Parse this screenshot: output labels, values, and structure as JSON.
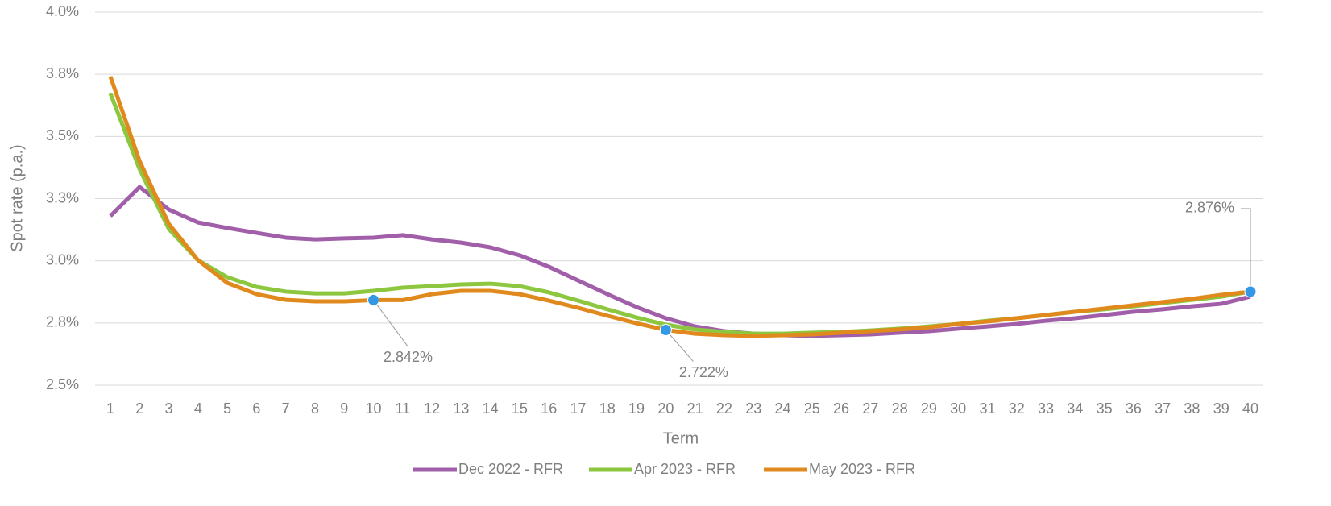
{
  "chart_data": {
    "type": "line",
    "x_label": "Term",
    "y_label": "Spot rate (p.a.)",
    "x": [
      1,
      2,
      3,
      4,
      5,
      6,
      7,
      8,
      9,
      10,
      11,
      12,
      13,
      14,
      15,
      16,
      17,
      18,
      19,
      20,
      21,
      22,
      23,
      24,
      25,
      26,
      27,
      28,
      29,
      30,
      31,
      32,
      33,
      34,
      35,
      36,
      37,
      38,
      39,
      40
    ],
    "xlim": [
      1,
      40
    ],
    "xticks": [
      1,
      2,
      3,
      4,
      5,
      6,
      7,
      8,
      9,
      10,
      11,
      12,
      13,
      14,
      15,
      16,
      17,
      18,
      19,
      20,
      21,
      22,
      23,
      24,
      25,
      26,
      27,
      28,
      29,
      30,
      31,
      32,
      33,
      34,
      35,
      36,
      37,
      38,
      39,
      40
    ],
    "ylim": [
      2.5,
      4.0
    ],
    "yticks": [
      {
        "value": 2.5,
        "label": "2.5%"
      },
      {
        "value": 2.75,
        "label": "2.8%"
      },
      {
        "value": 3.0,
        "label": "3.0%"
      },
      {
        "value": 3.25,
        "label": "3.3%"
      },
      {
        "value": 3.5,
        "label": "3.5%"
      },
      {
        "value": 3.75,
        "label": "3.8%"
      },
      {
        "value": 4.0,
        "label": "4.0%"
      }
    ],
    "grid": true,
    "legend": "bottom",
    "series": [
      {
        "name": "Dec 2022 - RFR",
        "color": "#a05fa8",
        "values": [
          3.18,
          3.297,
          3.206,
          3.154,
          3.132,
          3.112,
          3.093,
          3.086,
          3.09,
          3.093,
          3.103,
          3.086,
          3.073,
          3.054,
          3.022,
          2.976,
          2.921,
          2.866,
          2.814,
          2.769,
          2.736,
          2.717,
          2.707,
          2.701,
          2.698,
          2.701,
          2.704,
          2.711,
          2.717,
          2.727,
          2.736,
          2.746,
          2.759,
          2.769,
          2.782,
          2.795,
          2.805,
          2.817,
          2.827,
          2.856
        ]
      },
      {
        "name": "Apr 2023 - RFR",
        "color": "#8dc63f",
        "values": [
          3.673,
          3.368,
          3.128,
          3.002,
          2.934,
          2.895,
          2.876,
          2.869,
          2.869,
          2.879,
          2.892,
          2.898,
          2.905,
          2.908,
          2.898,
          2.873,
          2.84,
          2.805,
          2.772,
          2.743,
          2.724,
          2.714,
          2.707,
          2.707,
          2.711,
          2.714,
          2.72,
          2.727,
          2.736,
          2.746,
          2.759,
          2.769,
          2.782,
          2.795,
          2.805,
          2.817,
          2.83,
          2.843,
          2.856,
          2.876
        ]
      },
      {
        "name": "May 2023 - RFR",
        "color": "#e08a1e",
        "values": [
          3.741,
          3.401,
          3.148,
          3.002,
          2.911,
          2.866,
          2.843,
          2.837,
          2.837,
          2.842,
          2.842,
          2.866,
          2.879,
          2.879,
          2.866,
          2.84,
          2.811,
          2.779,
          2.749,
          2.722,
          2.707,
          2.701,
          2.698,
          2.701,
          2.704,
          2.711,
          2.717,
          2.724,
          2.733,
          2.746,
          2.756,
          2.769,
          2.782,
          2.795,
          2.808,
          2.821,
          2.834,
          2.847,
          2.863,
          2.876
        ]
      }
    ],
    "marker_color": "#3399e6",
    "annotations": [
      {
        "x": 10,
        "label": "2.842%"
      },
      {
        "x": 20,
        "label": "2.722%"
      },
      {
        "x": 40,
        "label": "2.876%"
      }
    ]
  }
}
